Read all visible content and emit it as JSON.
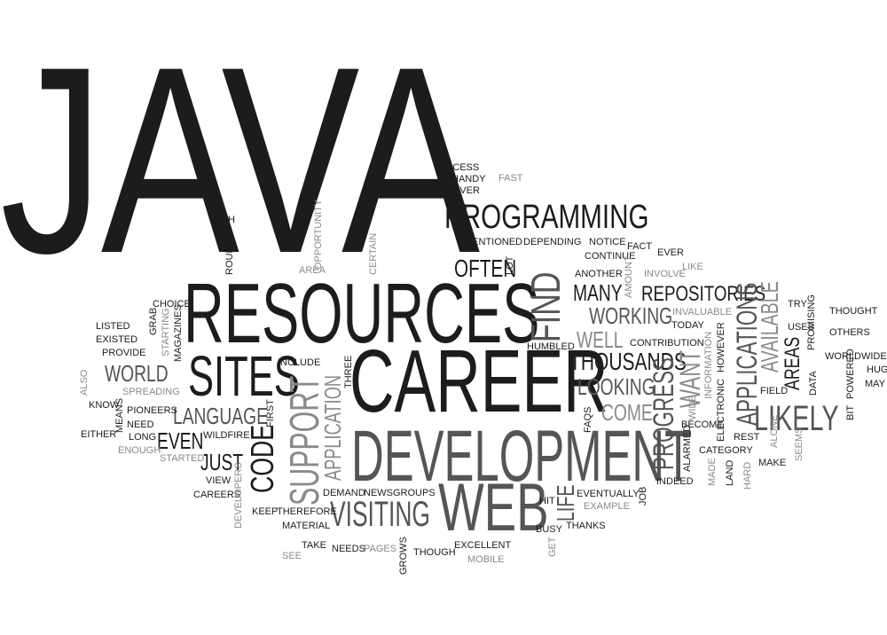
{
  "cloud": {
    "words": [
      {
        "text": "JAVA",
        "style": "dark big"
      },
      {
        "text": "PROGRAMMING",
        "style": "dark"
      },
      {
        "text": "RESOURCES",
        "style": "dark"
      },
      {
        "text": "CAREER",
        "style": "dark"
      },
      {
        "text": "DEVELOPMENT",
        "style": "mid"
      },
      {
        "text": "WEB",
        "style": "mid"
      },
      {
        "text": "SITES",
        "style": "dark"
      },
      {
        "text": "LIKELY",
        "style": "mid"
      },
      {
        "text": "THOUSANDS",
        "style": "dark"
      },
      {
        "text": "REPOSITORIES",
        "style": "dark"
      },
      {
        "text": "VISITING",
        "style": "mid"
      },
      {
        "text": "WORKING",
        "style": "mid"
      },
      {
        "text": "LOOKING",
        "style": "mid"
      },
      {
        "text": "LANGUAGE",
        "style": "mid"
      },
      {
        "text": "WORLD",
        "style": "mid"
      },
      {
        "text": "MANY",
        "style": "dark"
      },
      {
        "text": "OFTEN",
        "style": "dark"
      },
      {
        "text": "WELL",
        "style": "light"
      },
      {
        "text": "COME",
        "style": "light"
      },
      {
        "text": "EVEN",
        "style": "dark"
      },
      {
        "text": "JUST",
        "style": "dark"
      },
      {
        "text": "FIND",
        "style": "mid"
      },
      {
        "text": "SUPPORT",
        "style": "light"
      },
      {
        "text": "CODE",
        "style": "dark"
      },
      {
        "text": "APPLICATION",
        "style": "light"
      },
      {
        "text": "PROGRESS",
        "style": "mid"
      },
      {
        "text": "WANT",
        "style": "light"
      },
      {
        "text": "APPLICATIONS",
        "style": "mid"
      },
      {
        "text": "AVAILABLE",
        "style": "light"
      },
      {
        "text": "AREAS",
        "style": "dark"
      },
      {
        "text": "LIFE",
        "style": "mid"
      },
      {
        "text": "ACCESS",
        "style": "dark"
      },
      {
        "text": "FAST",
        "style": "light"
      },
      {
        "text": "HANDY",
        "style": "dark"
      },
      {
        "text": "NEVER",
        "style": "dark"
      },
      {
        "text": "RICH",
        "style": "dark"
      },
      {
        "text": "MENTIONED",
        "style": "dark"
      },
      {
        "text": "DEPENDING",
        "style": "dark"
      },
      {
        "text": "NOTICE",
        "style": "dark"
      },
      {
        "text": "FACT",
        "style": "dark"
      },
      {
        "text": "EVER",
        "style": "dark"
      },
      {
        "text": "CONTINUE",
        "style": "dark"
      },
      {
        "text": "LIKE",
        "style": "light"
      },
      {
        "text": "ANOTHER",
        "style": "dark"
      },
      {
        "text": "INVOLVE",
        "style": "light"
      },
      {
        "text": "TRY",
        "style": "dark"
      },
      {
        "text": "THOUGHT",
        "style": "dark"
      },
      {
        "text": "INVALUABLE",
        "style": "light"
      },
      {
        "text": "TODAY",
        "style": "dark"
      },
      {
        "text": "USES",
        "style": "dark"
      },
      {
        "text": "OTHERS",
        "style": "dark"
      },
      {
        "text": "CONTRIBUTION",
        "style": "dark"
      },
      {
        "text": "WORLDWIDE",
        "style": "dark"
      },
      {
        "text": "HUGE",
        "style": "dark"
      },
      {
        "text": "MAY",
        "style": "dark"
      },
      {
        "text": "FIELD",
        "style": "dark"
      },
      {
        "text": "CHOICE",
        "style": "dark"
      },
      {
        "text": "LISTED",
        "style": "dark"
      },
      {
        "text": "EXISTED",
        "style": "dark"
      },
      {
        "text": "PROVIDE",
        "style": "dark"
      },
      {
        "text": "INCLUDE",
        "style": "dark"
      },
      {
        "text": "HUMBLED",
        "style": "dark"
      },
      {
        "text": "SPREADING",
        "style": "light"
      },
      {
        "text": "KNOW",
        "style": "dark"
      },
      {
        "text": "PIONEERS",
        "style": "dark"
      },
      {
        "text": "NEED",
        "style": "dark"
      },
      {
        "text": "LONG",
        "style": "dark"
      },
      {
        "text": "EITHER",
        "style": "dark"
      },
      {
        "text": "ENOUGH",
        "style": "light"
      },
      {
        "text": "WILDFIRE",
        "style": "dark"
      },
      {
        "text": "STARTED",
        "style": "light"
      },
      {
        "text": "VIEW",
        "style": "dark"
      },
      {
        "text": "CAREERS",
        "style": "dark"
      },
      {
        "text": "KEEP",
        "style": "dark"
      },
      {
        "text": "THEREFORE",
        "style": "dark"
      },
      {
        "text": "MATERIAL",
        "style": "dark"
      },
      {
        "text": "DEMAND",
        "style": "dark"
      },
      {
        "text": "NEWSGROUPS",
        "style": "dark"
      },
      {
        "text": "HIT",
        "style": "dark"
      },
      {
        "text": "EVENTUALLY",
        "style": "dark"
      },
      {
        "text": "EXAMPLE",
        "style": "light"
      },
      {
        "text": "BUSY",
        "style": "dark"
      },
      {
        "text": "THANKS",
        "style": "dark"
      },
      {
        "text": "TAKE",
        "style": "dark"
      },
      {
        "text": "NEEDS",
        "style": "dark"
      },
      {
        "text": "PAGES",
        "style": "light"
      },
      {
        "text": "SEE",
        "style": "light"
      },
      {
        "text": "THOUGH",
        "style": "dark"
      },
      {
        "text": "EXCELLENT",
        "style": "dark"
      },
      {
        "text": "MOBILE",
        "style": "light"
      },
      {
        "text": "GET",
        "style": "light"
      },
      {
        "text": "FAQS",
        "style": "dark"
      },
      {
        "text": "INDEED",
        "style": "dark"
      },
      {
        "text": "BECOME",
        "style": "dark"
      },
      {
        "text": "CATEGORY",
        "style": "dark"
      },
      {
        "text": "ALARMED",
        "style": "dark"
      },
      {
        "text": "REST",
        "style": "dark"
      },
      {
        "text": "MAKE",
        "style": "dark"
      },
      {
        "text": "LAND",
        "style": "dark"
      },
      {
        "text": "MADE",
        "style": "light"
      },
      {
        "text": "HARD",
        "style": "light"
      },
      {
        "text": "ALONE",
        "style": "light"
      },
      {
        "text": "SEEMS",
        "style": "light"
      },
      {
        "text": "WIDE",
        "style": "light"
      },
      {
        "text": "ELECTRONIC",
        "style": "dark"
      },
      {
        "text": "HOWEVER",
        "style": "dark"
      },
      {
        "text": "INFORMATION",
        "style": "light"
      },
      {
        "text": "PROMISING",
        "style": "dark"
      },
      {
        "text": "DATA",
        "style": "dark"
      },
      {
        "text": "POWERED",
        "style": "dark"
      },
      {
        "text": "BIT",
        "style": "dark"
      },
      {
        "text": "AMOUNT",
        "style": "light"
      },
      {
        "text": "LOT",
        "style": "dark"
      },
      {
        "text": "CERTAIN",
        "style": "light"
      },
      {
        "text": "OPPORTUNITY",
        "style": "light"
      },
      {
        "text": "AREA",
        "style": "light"
      },
      {
        "text": "ROUND",
        "style": "dark"
      },
      {
        "text": "GRAB",
        "style": "dark"
      },
      {
        "text": "STARTING",
        "style": "light"
      },
      {
        "text": "MAGAZINES",
        "style": "dark"
      },
      {
        "text": "ALSO",
        "style": "light"
      },
      {
        "text": "MEANS",
        "style": "dark"
      },
      {
        "text": "FIRST",
        "style": "dark"
      },
      {
        "text": "THREE",
        "style": "dark"
      },
      {
        "text": "DEVELOPERS",
        "style": "light"
      },
      {
        "text": "GROWS",
        "style": "dark"
      },
      {
        "text": "JOB",
        "style": "dark"
      }
    ]
  }
}
